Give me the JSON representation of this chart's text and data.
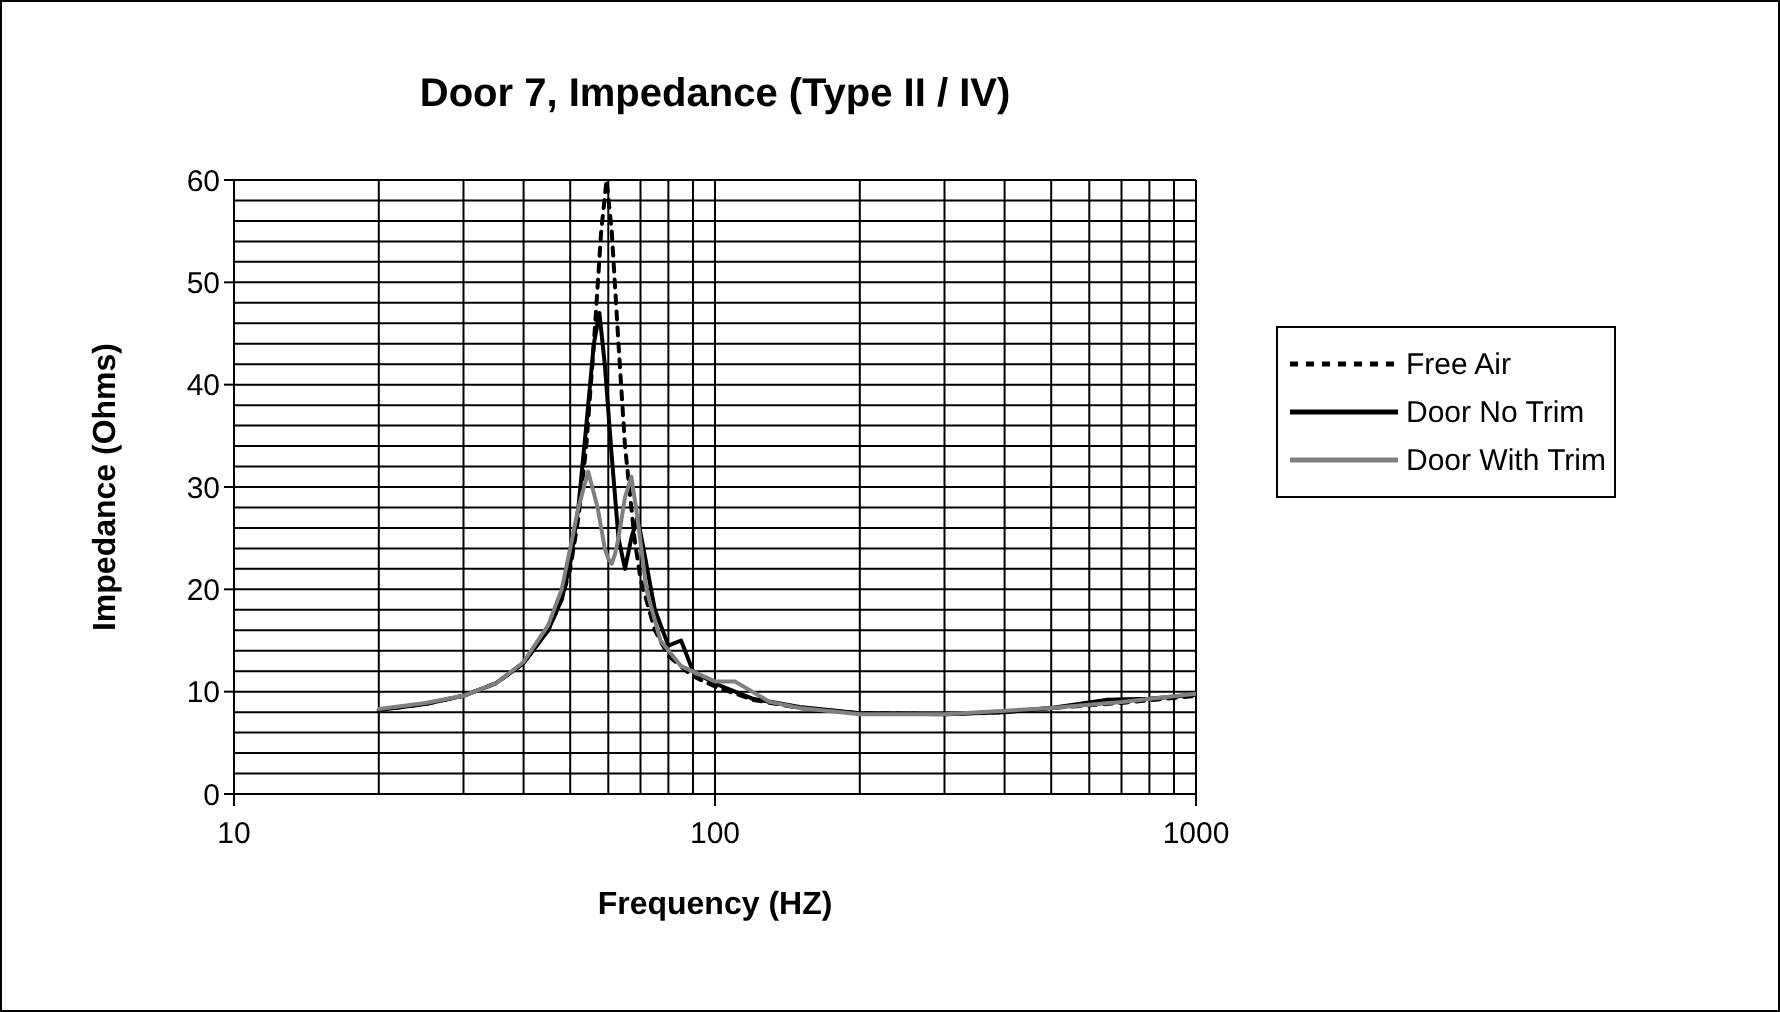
{
  "chart_data": {
    "type": "line",
    "title": "Door 7, Impedance (Type II / IV)",
    "xlabel": "Frequency (HZ)",
    "ylabel": "Impedance (Ohms)",
    "log": "x",
    "xlim": [
      10,
      1000
    ],
    "xticks": [
      10,
      {
        "value": 20,
        "label": null
      },
      {
        "value": 30,
        "label": null
      },
      {
        "value": 40,
        "label": null
      },
      {
        "value": 50,
        "label": null
      },
      {
        "value": 60,
        "label": null
      },
      {
        "value": 70,
        "label": null
      },
      {
        "value": 80,
        "label": null
      },
      {
        "value": 90,
        "label": null
      },
      100,
      {
        "value": 200,
        "label": null
      },
      {
        "value": 300,
        "label": null
      },
      {
        "value": 400,
        "label": null
      },
      {
        "value": 500,
        "label": null
      },
      {
        "value": 600,
        "label": null
      },
      {
        "value": 700,
        "label": null
      },
      {
        "value": 800,
        "label": null
      },
      {
        "value": 900,
        "label": null
      },
      1000
    ],
    "ylim": [
      0,
      60
    ],
    "yticks": [
      0,
      {
        "value": 2,
        "label": null
      },
      {
        "value": 4,
        "label": null
      },
      {
        "value": 6,
        "label": null
      },
      {
        "value": 8,
        "label": null
      },
      10,
      {
        "value": 12,
        "label": null
      },
      {
        "value": 14,
        "label": null
      },
      {
        "value": 16,
        "label": null
      },
      {
        "value": 18,
        "label": null
      },
      20,
      {
        "value": 22,
        "label": null
      },
      {
        "value": 24,
        "label": null
      },
      {
        "value": 26,
        "label": null
      },
      {
        "value": 28,
        "label": null
      },
      30,
      {
        "value": 32,
        "label": null
      },
      {
        "value": 34,
        "label": null
      },
      {
        "value": 36,
        "label": null
      },
      {
        "value": 38,
        "label": null
      },
      40,
      {
        "value": 42,
        "label": null
      },
      {
        "value": 44,
        "label": null
      },
      {
        "value": 46,
        "label": null
      },
      {
        "value": 48,
        "label": null
      },
      50,
      {
        "value": 52,
        "label": null
      },
      {
        "value": 54,
        "label": null
      },
      {
        "value": 56,
        "label": null
      },
      {
        "value": 58,
        "label": null
      },
      60
    ],
    "grid": true,
    "legend": "right",
    "series": [
      {
        "name": "Free Air",
        "color": "#000000",
        "line_style": "dashed",
        "x": [
          20,
          25,
          30,
          35,
          40,
          45,
          48,
          50,
          52,
          54,
          56,
          58,
          59.5,
          61,
          63,
          65,
          68,
          70,
          75,
          80,
          90,
          100,
          120,
          150,
          200,
          300,
          400,
          500,
          700,
          1000
        ],
        "values": [
          8.2,
          8.8,
          9.6,
          10.8,
          12.8,
          16,
          19,
          22,
          27,
          34,
          44,
          55,
          60,
          55,
          44,
          34,
          25,
          21,
          16,
          13.5,
          11.5,
          10.5,
          9.2,
          8.4,
          7.9,
          7.8,
          8,
          8.4,
          8.9,
          9.6
        ]
      },
      {
        "name": "Door No Trim",
        "color": "#000000",
        "line_style": "solid",
        "x": [
          20,
          25,
          30,
          35,
          40,
          45,
          48,
          50,
          52,
          54,
          56,
          57.5,
          59,
          61,
          63,
          65,
          67,
          69,
          71,
          75,
          80,
          85,
          90,
          100,
          120,
          150,
          200,
          300,
          400,
          500,
          650,
          800,
          1000
        ],
        "values": [
          8.2,
          8.8,
          9.6,
          10.8,
          12.8,
          16,
          19,
          22.5,
          28,
          36,
          44,
          47,
          42,
          33,
          25,
          22,
          25,
          27,
          24,
          18,
          14.5,
          15,
          12,
          10.8,
          9.3,
          8.5,
          7.9,
          7.8,
          8,
          8.4,
          9.2,
          9.3,
          9.7
        ]
      },
      {
        "name": "Door With Trim",
        "color": "#808080",
        "line_style": "solid",
        "x": [
          20,
          25,
          30,
          35,
          40,
          45,
          48,
          50,
          52,
          54.5,
          57,
          59,
          60,
          61,
          62,
          63,
          65,
          67,
          69,
          72,
          77,
          85,
          100,
          110,
          130,
          150,
          200,
          300,
          500,
          700,
          1000
        ],
        "values": [
          8.3,
          8.9,
          9.6,
          10.8,
          12.9,
          16.5,
          20,
          24,
          28,
          31.5,
          28,
          24,
          23,
          22.5,
          23.5,
          25,
          29,
          31,
          27,
          20,
          15,
          12.5,
          11,
          11,
          9,
          8.4,
          7.8,
          7.8,
          8.4,
          9,
          9.8
        ]
      }
    ]
  }
}
